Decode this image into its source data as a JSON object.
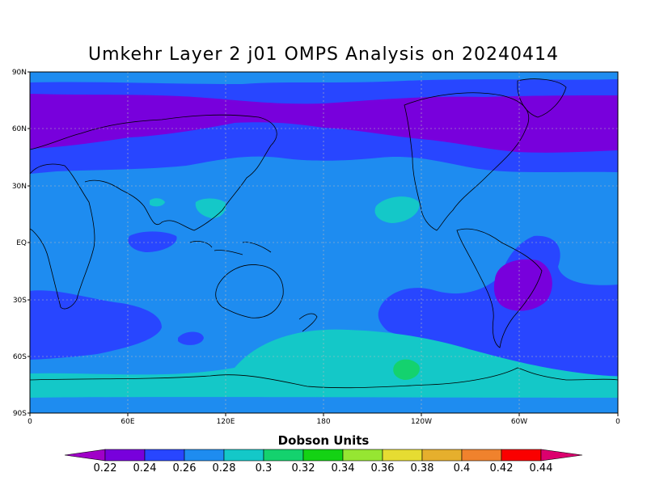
{
  "title": "Umkehr Layer 2 j01 OMPS Analysis on 20240414",
  "colorbar": {
    "title": "Dobson Units",
    "levels": [
      "0.22",
      "0.24",
      "0.26",
      "0.28",
      "0.3",
      "0.32",
      "0.34",
      "0.36",
      "0.38",
      "0.4",
      "0.42",
      "0.44"
    ],
    "colors": [
      "#a000c8",
      "#7800dc",
      "#2846ff",
      "#1e8cf0",
      "#14c8c8",
      "#14d26e",
      "#14d214",
      "#96e632",
      "#e6dc32",
      "#e6af2d",
      "#f0822d",
      "#fa0000",
      "#dc006e"
    ]
  },
  "axes": {
    "lat_labels": [
      "90N",
      "60N",
      "30N",
      "EQ",
      "30S",
      "60S",
      "90S"
    ],
    "lon_labels": [
      "0",
      "60E",
      "120E",
      "180",
      "120W",
      "60W",
      "0"
    ]
  },
  "field_colors": {
    "purple": "#7800dc",
    "blue": "#2846ff",
    "lightblue": "#1e8cf0",
    "cyan": "#14c8c8",
    "teal": "#14d26e"
  },
  "map_layers": [
    {
      "name": "purple-north-band",
      "color": "purple"
    },
    {
      "name": "blue-southern-midlat",
      "color": "blue"
    },
    {
      "name": "cyan-antarctic-ring",
      "color": "cyan"
    },
    {
      "name": "teal-antarctic-patch",
      "color": "teal"
    },
    {
      "name": "purple-south-america-patch",
      "color": "purple"
    }
  ]
}
